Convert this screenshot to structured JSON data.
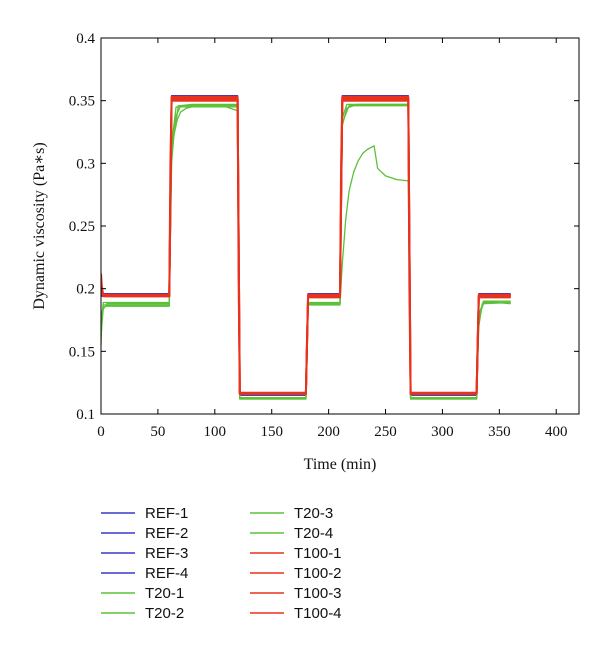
{
  "chart_data": {
    "type": "line",
    "title": "",
    "xlabel": "Time (min)",
    "ylabel": "Dynamic viscosity (Pa∗s)",
    "xlim": [
      0,
      420
    ],
    "ylim": [
      0.1,
      0.4
    ],
    "x_ticks": [
      0,
      50,
      100,
      150,
      200,
      250,
      300,
      350,
      400
    ],
    "y_ticks": [
      0.1,
      0.15,
      0.2,
      0.25,
      0.3,
      0.35,
      0.4
    ],
    "x_tick_labels": [
      "0",
      "50",
      "100",
      "150",
      "200",
      "250",
      "300",
      "350",
      "400"
    ],
    "y_tick_labels": [
      "0.1",
      "0.15",
      "0.2",
      "0.25",
      "0.3",
      "0.35",
      "0.4"
    ],
    "grid": false,
    "legend_position": "bottom",
    "colors": {
      "REF": "#3a3ac8",
      "T20": "#5cc039",
      "T100": "#e8321e"
    },
    "series": [
      {
        "name": "REF-1",
        "group": "REF",
        "x": [
          0,
          60,
          62,
          120,
          122,
          180,
          182,
          210,
          212,
          270,
          272,
          330,
          332,
          360
        ],
        "y": [
          0.195,
          0.195,
          0.352,
          0.352,
          0.116,
          0.116,
          0.194,
          0.194,
          0.352,
          0.352,
          0.116,
          0.116,
          0.194,
          0.194
        ]
      },
      {
        "name": "REF-2",
        "group": "REF",
        "x": [
          0,
          60,
          62,
          120,
          122,
          180,
          182,
          210,
          212,
          270,
          272,
          330,
          332,
          360
        ],
        "y": [
          0.196,
          0.196,
          0.353,
          0.353,
          0.115,
          0.115,
          0.195,
          0.195,
          0.353,
          0.353,
          0.115,
          0.115,
          0.195,
          0.195
        ]
      },
      {
        "name": "REF-3",
        "group": "REF",
        "x": [
          0,
          60,
          62,
          120,
          122,
          180,
          182,
          210,
          212,
          270,
          272,
          330,
          332,
          360
        ],
        "y": [
          0.194,
          0.194,
          0.351,
          0.351,
          0.116,
          0.116,
          0.193,
          0.193,
          0.351,
          0.351,
          0.116,
          0.116,
          0.193,
          0.193
        ]
      },
      {
        "name": "REF-4",
        "group": "REF",
        "x": [
          0,
          60,
          62,
          120,
          122,
          180,
          182,
          210,
          212,
          270,
          272,
          330,
          332,
          360
        ],
        "y": [
          0.195,
          0.195,
          0.354,
          0.354,
          0.115,
          0.115,
          0.196,
          0.196,
          0.354,
          0.354,
          0.115,
          0.115,
          0.196,
          0.196
        ]
      },
      {
        "name": "T20-1",
        "group": "T20",
        "x": [
          0,
          1,
          5,
          60,
          62,
          64,
          67,
          70,
          75,
          80,
          90,
          100,
          110,
          120,
          122,
          180,
          182,
          210,
          212,
          215,
          218,
          222,
          226,
          230,
          234,
          238,
          240,
          243,
          250,
          260,
          270,
          272,
          330,
          332,
          335,
          360
        ],
        "y": [
          0.155,
          0.182,
          0.188,
          0.188,
          0.3,
          0.322,
          0.335,
          0.341,
          0.344,
          0.345,
          0.345,
          0.345,
          0.345,
          0.342,
          0.113,
          0.113,
          0.188,
          0.188,
          0.22,
          0.255,
          0.278,
          0.293,
          0.302,
          0.308,
          0.311,
          0.313,
          0.314,
          0.296,
          0.29,
          0.287,
          0.286,
          0.113,
          0.113,
          0.17,
          0.188,
          0.189
        ]
      },
      {
        "name": "T20-2",
        "group": "T20",
        "x": [
          0,
          2,
          5,
          60,
          62,
          66,
          70,
          80,
          120,
          122,
          180,
          182,
          210,
          212,
          216,
          225,
          270,
          272,
          330,
          332,
          336,
          360
        ],
        "y": [
          0.162,
          0.185,
          0.186,
          0.186,
          0.305,
          0.338,
          0.346,
          0.347,
          0.347,
          0.112,
          0.112,
          0.189,
          0.189,
          0.33,
          0.344,
          0.347,
          0.347,
          0.112,
          0.112,
          0.175,
          0.19,
          0.188
        ]
      },
      {
        "name": "T20-3",
        "group": "T20",
        "x": [
          0,
          2,
          60,
          62,
          68,
          120,
          122,
          180,
          182,
          210,
          212,
          218,
          270,
          272,
          330,
          332,
          337,
          360
        ],
        "y": [
          0.17,
          0.189,
          0.189,
          0.31,
          0.346,
          0.346,
          0.112,
          0.112,
          0.188,
          0.188,
          0.332,
          0.346,
          0.346,
          0.112,
          0.112,
          0.178,
          0.19,
          0.19
        ]
      },
      {
        "name": "T20-4",
        "group": "T20",
        "x": [
          0,
          2,
          60,
          62,
          66,
          120,
          122,
          180,
          182,
          210,
          212,
          216,
          270,
          272,
          330,
          332,
          336,
          360
        ],
        "y": [
          0.168,
          0.187,
          0.187,
          0.315,
          0.345,
          0.345,
          0.113,
          0.113,
          0.187,
          0.187,
          0.336,
          0.347,
          0.347,
          0.113,
          0.113,
          0.18,
          0.189,
          0.189
        ]
      },
      {
        "name": "T100-1",
        "group": "T100",
        "x": [
          0,
          1,
          3,
          60,
          61,
          62,
          120,
          121,
          122,
          180,
          181,
          182,
          210,
          211,
          212,
          270,
          271,
          272,
          330,
          331,
          332,
          360
        ],
        "y": [
          0.212,
          0.198,
          0.194,
          0.194,
          0.3,
          0.351,
          0.351,
          0.2,
          0.116,
          0.116,
          0.16,
          0.194,
          0.194,
          0.3,
          0.351,
          0.351,
          0.2,
          0.116,
          0.116,
          0.16,
          0.194,
          0.194
        ]
      },
      {
        "name": "T100-2",
        "group": "T100",
        "x": [
          0,
          2,
          60,
          62,
          120,
          122,
          180,
          182,
          210,
          212,
          270,
          272,
          330,
          332,
          360
        ],
        "y": [
          0.205,
          0.195,
          0.195,
          0.352,
          0.352,
          0.116,
          0.116,
          0.195,
          0.195,
          0.352,
          0.352,
          0.116,
          0.116,
          0.195,
          0.195
        ]
      },
      {
        "name": "T100-3",
        "group": "T100",
        "x": [
          0,
          2,
          60,
          62,
          120,
          122,
          180,
          182,
          210,
          212,
          270,
          272,
          330,
          332,
          360
        ],
        "y": [
          0.2,
          0.194,
          0.194,
          0.35,
          0.35,
          0.117,
          0.117,
          0.193,
          0.193,
          0.35,
          0.35,
          0.117,
          0.117,
          0.193,
          0.193
        ]
      },
      {
        "name": "T100-4",
        "group": "T100",
        "x": [
          0,
          2,
          60,
          62,
          120,
          122,
          180,
          182,
          210,
          212,
          270,
          272,
          330,
          332,
          360
        ],
        "y": [
          0.198,
          0.195,
          0.195,
          0.353,
          0.353,
          0.116,
          0.116,
          0.195,
          0.195,
          0.353,
          0.353,
          0.116,
          0.116,
          0.195,
          0.195
        ]
      }
    ]
  }
}
